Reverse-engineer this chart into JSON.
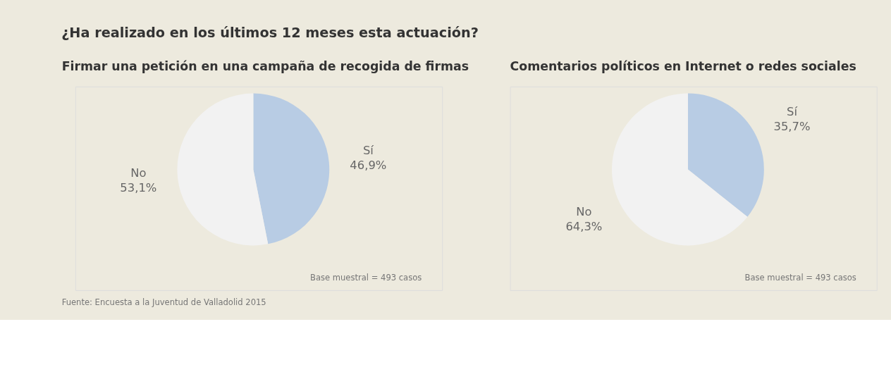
{
  "chart_data": [
    {
      "type": "pie",
      "title": "¿Ha realizado en los últimos 12 meses esta actuación?",
      "subtitle": "Firmar una petición en una campaña de recogida de firmas",
      "categories": [
        "Sí",
        "No"
      ],
      "values": [
        46.9,
        53.1
      ],
      "colors": [
        "#b8cce4",
        "#f2f2f2"
      ],
      "value_labels": [
        "46,9%",
        "53,1%"
      ],
      "annotations": [
        "Base muestral = 493 casos",
        "Fuente: Encuesta a la Juventud de Valladolid 2015"
      ]
    },
    {
      "type": "pie",
      "title": "Comentarios políticos en Internet o redes sociales",
      "categories": [
        "Sí",
        "No"
      ],
      "values": [
        35.7,
        64.3
      ],
      "colors": [
        "#b8cce4",
        "#f2f2f2"
      ],
      "value_labels": [
        "35,7%",
        "64,3%"
      ],
      "annotations": [
        "Base muestral = 493 casos"
      ]
    }
  ]
}
